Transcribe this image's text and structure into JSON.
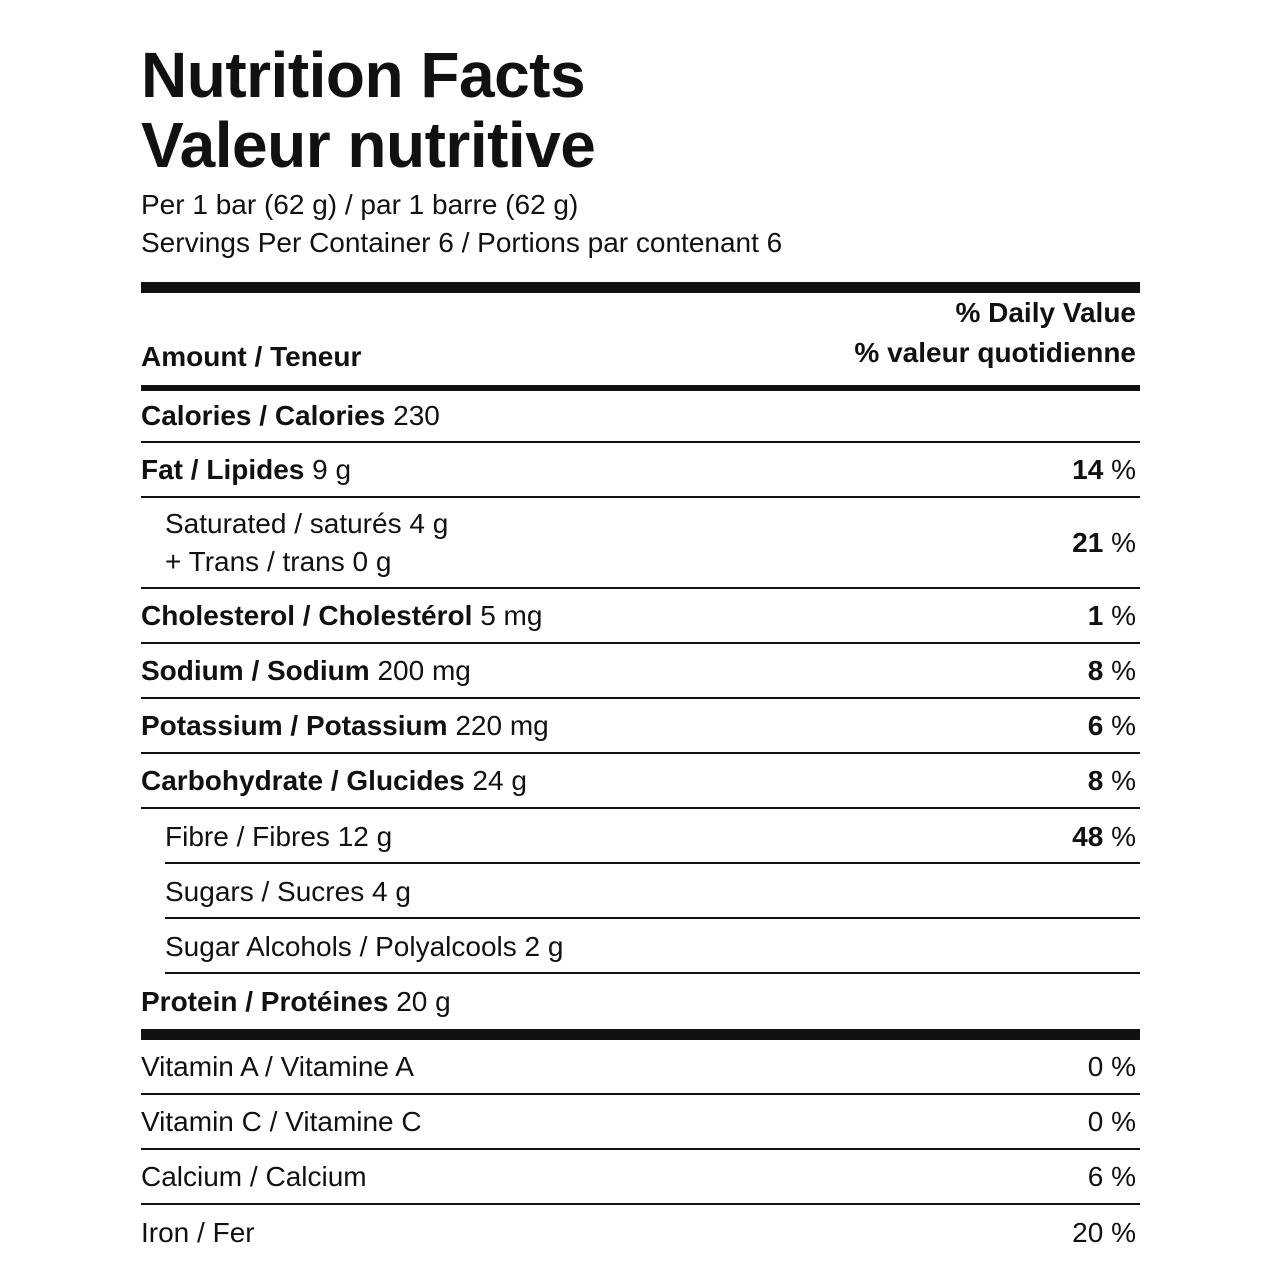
{
  "title_en": "Nutrition Facts",
  "title_fr": "Valeur nutritive",
  "serving": "Per 1 bar (62 g) / par 1 barre (62 g)",
  "servings_per_container": "Servings Per Container 6 / Portions par contenant 6",
  "header": {
    "amount": "Amount / Teneur",
    "dv_en": "% Daily Value",
    "dv_fr": "% valeur quotidienne"
  },
  "nutrients": {
    "calories": {
      "name": "Calories / Calories",
      "amount": "230"
    },
    "fat": {
      "name": "Fat / Lipides",
      "amount": "9 g",
      "dv": "14",
      "unit": "%"
    },
    "saturated": {
      "line1": "Saturated / saturés 4 g",
      "line2": "+ Trans / trans 0 g",
      "dv": "21",
      "unit": "%"
    },
    "cholesterol": {
      "name": "Cholesterol / Cholestérol",
      "amount": "5 mg",
      "dv": "1",
      "unit": "%"
    },
    "sodium": {
      "name": "Sodium / Sodium",
      "amount": "200 mg",
      "dv": "8",
      "unit": "%"
    },
    "potassium": {
      "name": "Potassium / Potassium",
      "amount": "220 mg",
      "dv": "6",
      "unit": "%"
    },
    "carbohydrate": {
      "name": "Carbohydrate / Glucides",
      "amount": "24 g",
      "dv": "8",
      "unit": "%"
    },
    "fibre": {
      "name": "Fibre / Fibres 12 g",
      "dv": "48",
      "unit": "%"
    },
    "sugars": {
      "name": "Sugars / Sucres 4 g"
    },
    "sugar_alcohols": {
      "name": "Sugar Alcohols / Polyalcools 2 g"
    },
    "protein": {
      "name": "Protein / Protéines",
      "amount": "20 g"
    }
  },
  "vitamins": {
    "vitamin_a": {
      "name": "Vitamin A / Vitamine A",
      "dv": "0 %"
    },
    "vitamin_c": {
      "name": "Vitamin C / Vitamine C",
      "dv": "0 %"
    },
    "calcium": {
      "name": "Calcium / Calcium",
      "dv": "6 %"
    },
    "iron": {
      "name": "Iron / Fer",
      "dv": "20 %"
    }
  }
}
